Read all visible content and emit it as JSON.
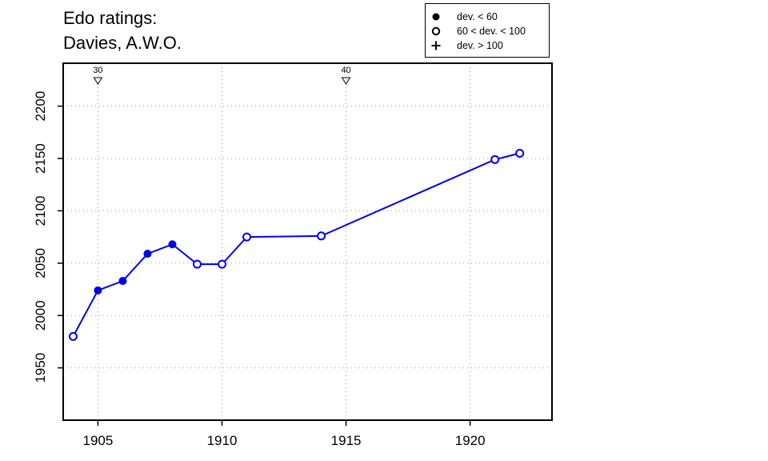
{
  "title": [
    "Edo ratings:",
    "Davies, A.W.O."
  ],
  "legend": [
    {
      "symbol": "filled-circle",
      "label": "dev. < 60"
    },
    {
      "symbol": "open-circle",
      "label": "60 < dev. < 100"
    },
    {
      "symbol": "plus",
      "label": "dev. > 100"
    }
  ],
  "colors": {
    "series": "#0000ee",
    "axis": "#000000",
    "grid": "#999999"
  },
  "chart_data": {
    "type": "line",
    "title": "Edo ratings: Davies, A.W.O.",
    "xlabel": "",
    "ylabel": "",
    "xlim": [
      1903.6,
      1923.3
    ],
    "ylim": [
      1900,
      2241
    ],
    "xticks": [
      1905,
      1910,
      1915,
      1920
    ],
    "yticks": [
      1950,
      2000,
      2050,
      2100,
      2150,
      2200
    ],
    "grid": true,
    "legend_position": "top-right",
    "series": [
      {
        "points": [
          {
            "x": 1904,
            "y": 1980,
            "marker": "open"
          },
          {
            "x": 1905,
            "y": 2024,
            "marker": "filled"
          },
          {
            "x": 1906,
            "y": 2033,
            "marker": "filled"
          },
          {
            "x": 1907,
            "y": 2059,
            "marker": "filled"
          },
          {
            "x": 1908,
            "y": 2068,
            "marker": "filled"
          },
          {
            "x": 1909,
            "y": 2049,
            "marker": "open"
          },
          {
            "x": 1910,
            "y": 2049,
            "marker": "open"
          },
          {
            "x": 1911,
            "y": 2075,
            "marker": "open"
          },
          {
            "x": 1914,
            "y": 2076,
            "marker": "open"
          },
          {
            "x": 1921,
            "y": 2149,
            "marker": "open"
          },
          {
            "x": 1922,
            "y": 2155,
            "marker": "open"
          }
        ]
      }
    ],
    "annotations": [
      {
        "x": 1905,
        "label": "30"
      },
      {
        "x": 1915,
        "label": "40"
      }
    ]
  }
}
